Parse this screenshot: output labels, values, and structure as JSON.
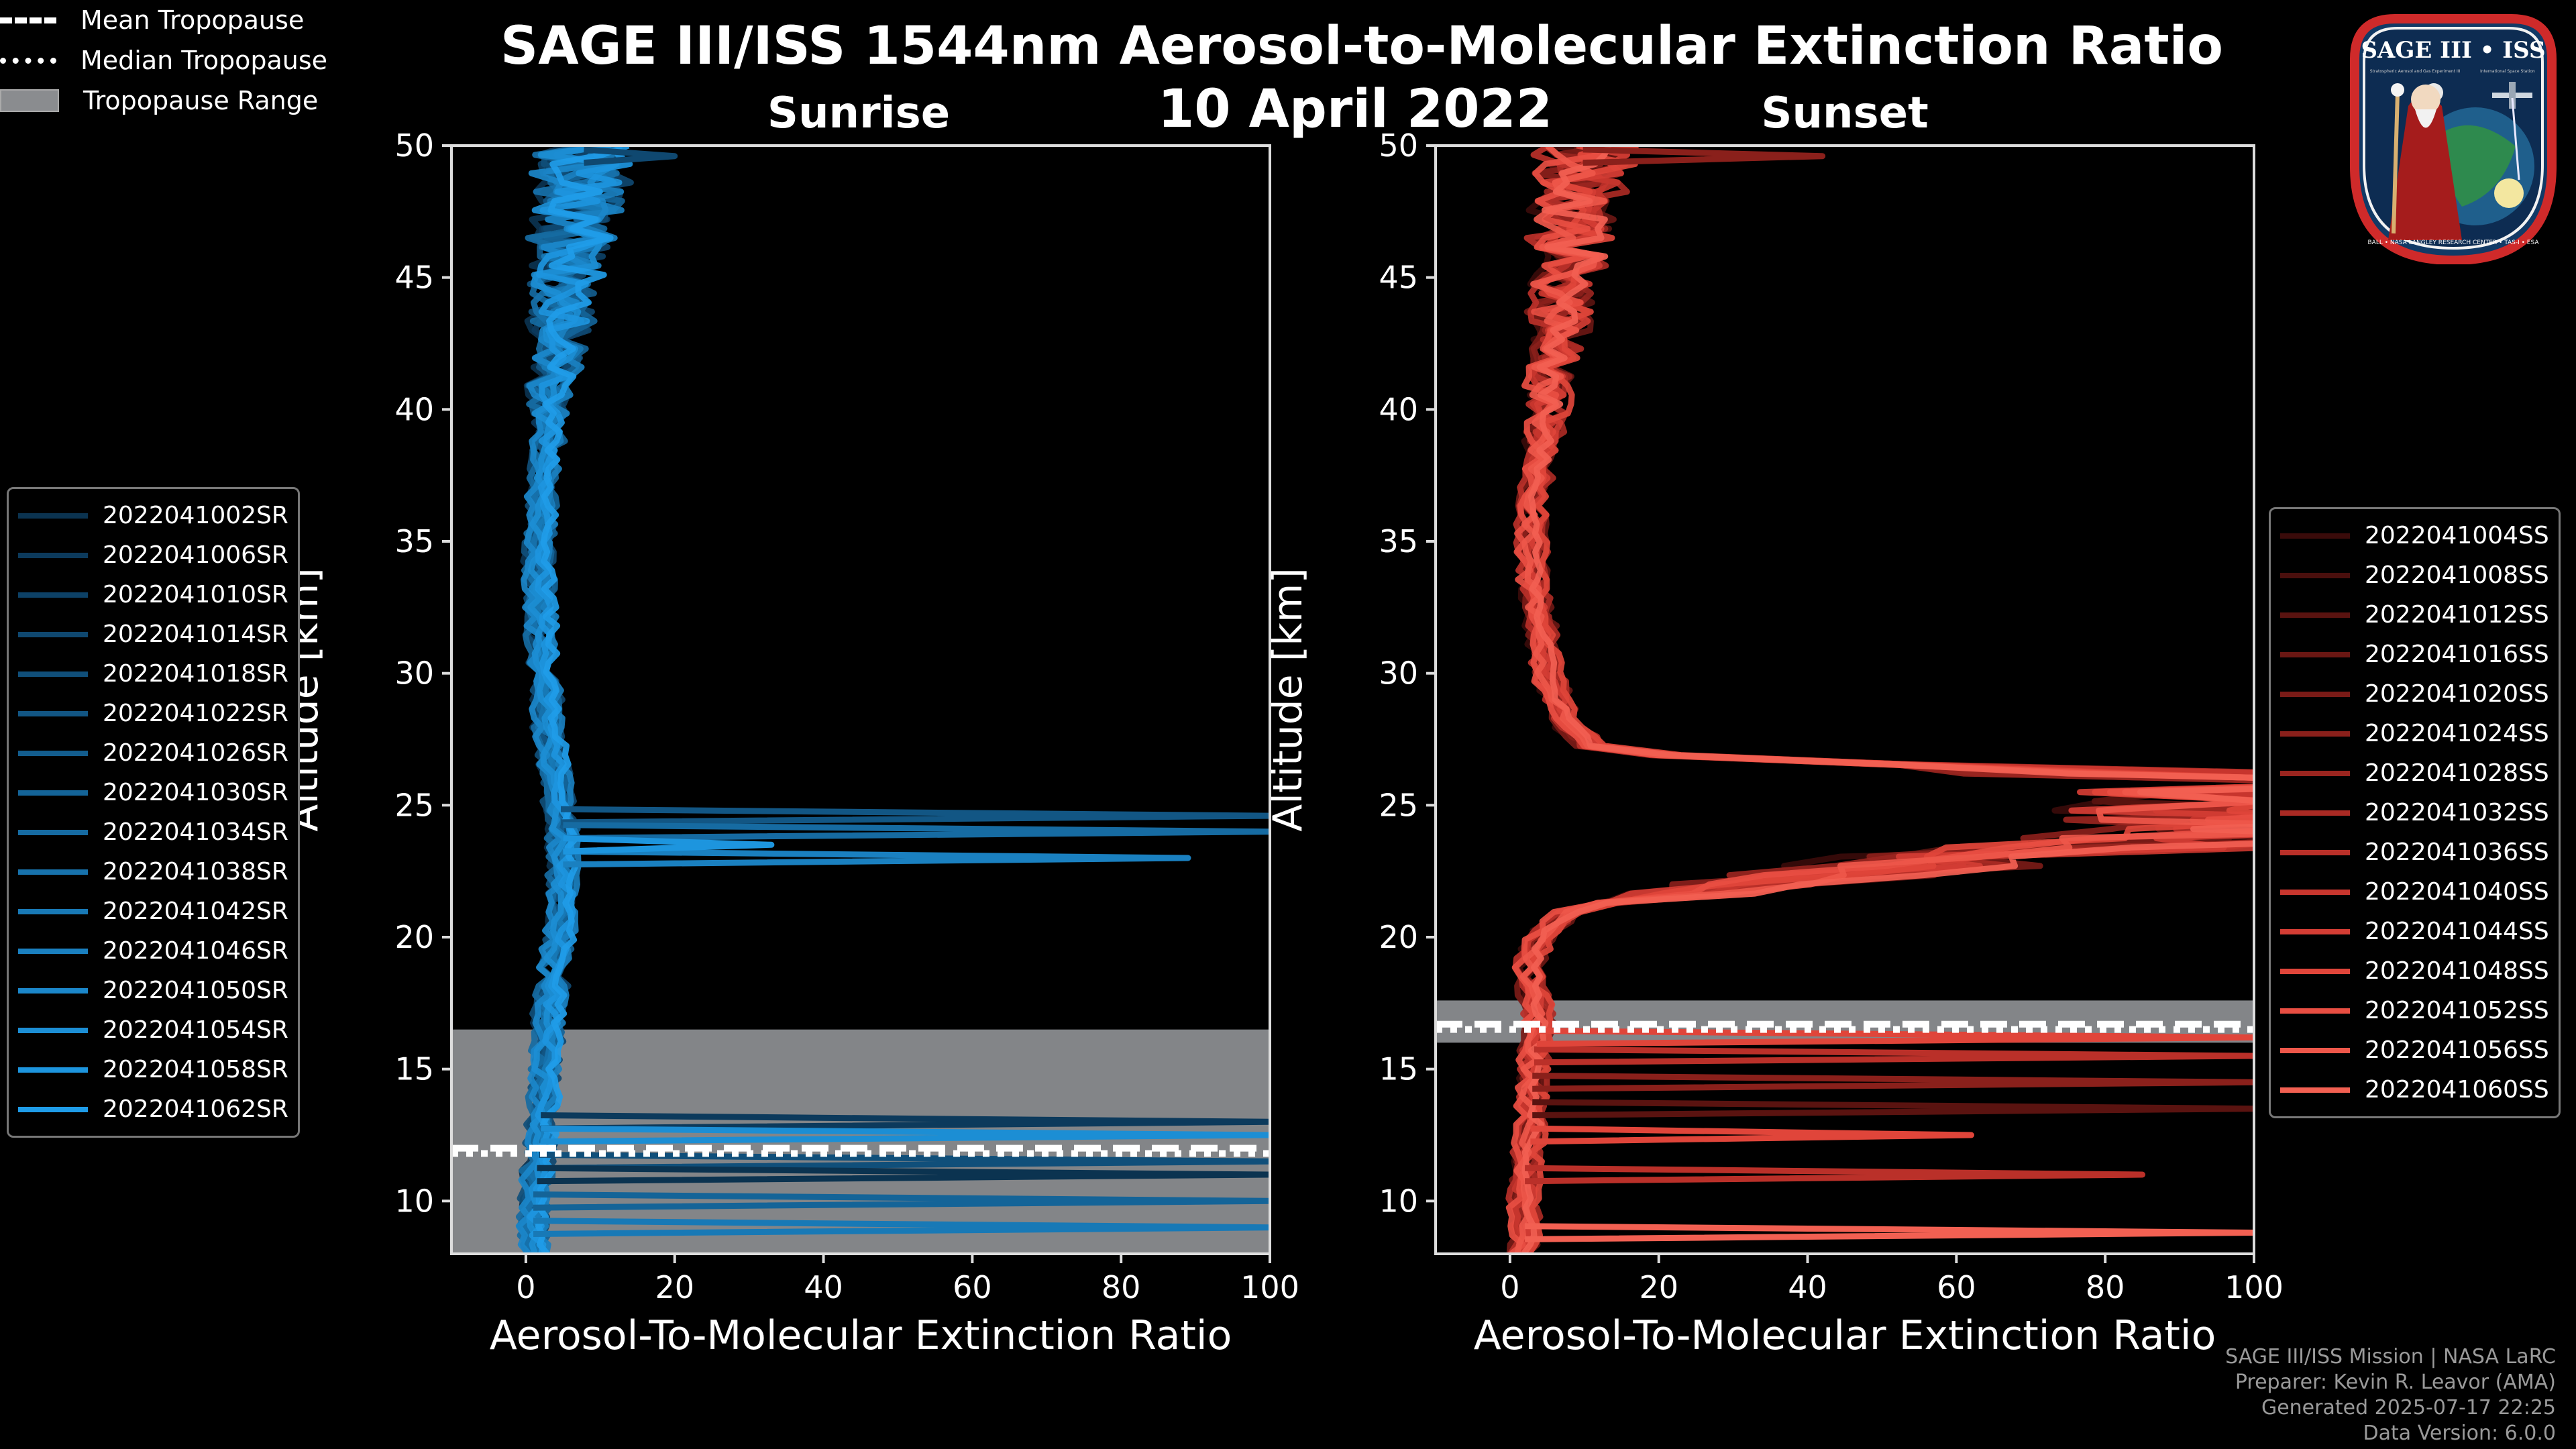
{
  "title": "SAGE III/ISS 1544nm Aerosol-to-Molecular Extinction Ratio",
  "date": "10 April 2022",
  "panels": {
    "sunrise": {
      "title": "Sunrise"
    },
    "sunset": {
      "title": "Sunset"
    }
  },
  "legend_tropopause": [
    {
      "label": "Mean Tropopause",
      "style": "dashed"
    },
    {
      "label": "Median Tropopause",
      "style": "dotted"
    },
    {
      "label": "Tropopause Range",
      "style": "box"
    }
  ],
  "footer": [
    "SAGE III/ISS Mission | NASA LaRC",
    "Preparer: Kevin R. Leavor (AMA)",
    "Generated 2025-07-17 22:25",
    "Data Version: 6.0.0"
  ],
  "logo": {
    "title": "SAGE III • ISS",
    "subtitle_left": "Stratospheric Aerosol and Gas Experiment III",
    "subtitle_right": "International Space Station",
    "ring_text": "BALL • NASA LANGLEY RESEARCH CENTER • TAS-I • ESA"
  },
  "colors": {
    "sunrise": [
      "#0b3350",
      "#0c3a5c",
      "#0d4166",
      "#0f4870",
      "#104f7a",
      "#125684",
      "#135d8e",
      "#146498",
      "#166ba2",
      "#1772ac",
      "#1879b6",
      "#1a80c0",
      "#1b87ca",
      "#1c8ed4",
      "#1d95de",
      "#1f9ce8"
    ],
    "sunset": [
      "#3a0b0a",
      "#4a0f0d",
      "#5a1310",
      "#6a1713",
      "#7a1b17",
      "#8a201b",
      "#9a251f",
      "#aa2a24",
      "#ba3029",
      "#c8362e",
      "#d43d34",
      "#e0453a",
      "#e84e42",
      "#ee574a",
      "#f26052"
    ],
    "tropopause_range": "#8a8c8f"
  },
  "chart_data": [
    {
      "type": "line",
      "panel": "Sunrise",
      "title": "Sunrise",
      "xlabel": "Aerosol-To-Molecular Extinction Ratio",
      "ylabel": "Altitude [km]",
      "xlim": [
        -10,
        100
      ],
      "ylim": [
        8,
        50
      ],
      "xticks": [
        0,
        20,
        40,
        60,
        80,
        100
      ],
      "yticks": [
        10,
        15,
        20,
        25,
        30,
        35,
        40,
        45,
        50
      ],
      "legend_position": "center-left",
      "tropopause": {
        "mean": 12.0,
        "median": 11.8,
        "range": [
          8,
          16.5
        ]
      },
      "base_profile": {
        "alt": [
          8,
          9,
          10,
          11,
          12,
          13,
          14,
          15,
          16,
          17,
          18,
          19,
          20,
          21,
          22,
          23,
          24,
          25,
          26,
          27,
          28,
          30,
          32,
          34,
          36,
          38,
          40,
          42,
          44,
          46,
          48,
          50
        ],
        "value": [
          1,
          1,
          1,
          1.5,
          2,
          2,
          2.5,
          2.5,
          3,
          3,
          3.5,
          4,
          4.5,
          5,
          5,
          5,
          5,
          4.5,
          4,
          3.5,
          3,
          2.5,
          2,
          1.8,
          2,
          2.5,
          3,
          4,
          5,
          6,
          7,
          8
        ]
      },
      "series": [
        {
          "name": "2022041002SR"
        },
        {
          "name": "2022041006SR"
        },
        {
          "name": "2022041010SR"
        },
        {
          "name": "2022041014SR"
        },
        {
          "name": "2022041018SR"
        },
        {
          "name": "2022041022SR"
        },
        {
          "name": "2022041026SR"
        },
        {
          "name": "2022041030SR"
        },
        {
          "name": "2022041034SR"
        },
        {
          "name": "2022041038SR"
        },
        {
          "name": "2022041042SR"
        },
        {
          "name": "2022041046SR"
        },
        {
          "name": "2022041050SR"
        },
        {
          "name": "2022041054SR"
        },
        {
          "name": "2022041058SR"
        },
        {
          "name": "2022041062SR"
        }
      ],
      "spikes": [
        {
          "alt": 24.6,
          "value": 100
        },
        {
          "alt": 24.0,
          "value": 100
        },
        {
          "alt": 23.0,
          "value": 89
        },
        {
          "alt": 23.5,
          "value": 33
        },
        {
          "alt": 13.0,
          "value": 100
        },
        {
          "alt": 11.5,
          "value": 100
        },
        {
          "alt": 10.0,
          "value": 100
        },
        {
          "alt": 9.0,
          "value": 100
        },
        {
          "alt": 12.5,
          "value": 100
        },
        {
          "alt": 11.0,
          "value": 100
        },
        {
          "alt": 49.6,
          "value": 20
        }
      ]
    },
    {
      "type": "line",
      "panel": "Sunset",
      "title": "Sunset",
      "xlabel": "Aerosol-To-Molecular Extinction Ratio",
      "ylabel": "Altitude [km]",
      "xlim": [
        -10,
        100
      ],
      "ylim": [
        8,
        50
      ],
      "xticks": [
        0,
        20,
        40,
        60,
        80,
        100
      ],
      "yticks": [
        10,
        15,
        20,
        25,
        30,
        35,
        40,
        45,
        50
      ],
      "legend_position": "center-right",
      "tropopause": {
        "mean": 16.7,
        "median": 16.5,
        "range": [
          16.0,
          17.6
        ]
      },
      "base_profile": {
        "alt": [
          8,
          9,
          10,
          11,
          12,
          13,
          14,
          15,
          16,
          17,
          18,
          19,
          20,
          21,
          22,
          23,
          24,
          25,
          26,
          27,
          28,
          30,
          32,
          34,
          36,
          38,
          40,
          42,
          44,
          46,
          48,
          50
        ],
        "value": [
          2,
          2,
          2,
          2,
          2.5,
          3,
          3,
          3,
          3.5,
          4,
          3,
          2.5,
          4,
          8,
          25,
          60,
          100,
          100,
          100,
          12,
          8,
          5,
          4,
          3,
          3,
          4,
          5,
          6,
          7,
          8,
          9,
          10
        ]
      },
      "series": [
        {
          "name": "2022041004SS"
        },
        {
          "name": "2022041008SS"
        },
        {
          "name": "2022041012SS"
        },
        {
          "name": "2022041016SS"
        },
        {
          "name": "2022041020SS"
        },
        {
          "name": "2022041024SS"
        },
        {
          "name": "2022041028SS"
        },
        {
          "name": "2022041032SS"
        },
        {
          "name": "2022041036SS"
        },
        {
          "name": "2022041040SS"
        },
        {
          "name": "2022041044SS"
        },
        {
          "name": "2022041048SS"
        },
        {
          "name": "2022041052SS"
        },
        {
          "name": "2022041056SS"
        },
        {
          "name": "2022041060SS"
        }
      ],
      "spikes": [
        {
          "alt": 49.6,
          "value": 42
        },
        {
          "alt": 11.0,
          "value": 85
        },
        {
          "alt": 12.5,
          "value": 62
        },
        {
          "alt": 8.8,
          "value": 100
        },
        {
          "alt": 13.5,
          "value": 100
        },
        {
          "alt": 14.5,
          "value": 100
        },
        {
          "alt": 15.5,
          "value": 100
        },
        {
          "alt": 16.2,
          "value": 100
        }
      ]
    }
  ]
}
